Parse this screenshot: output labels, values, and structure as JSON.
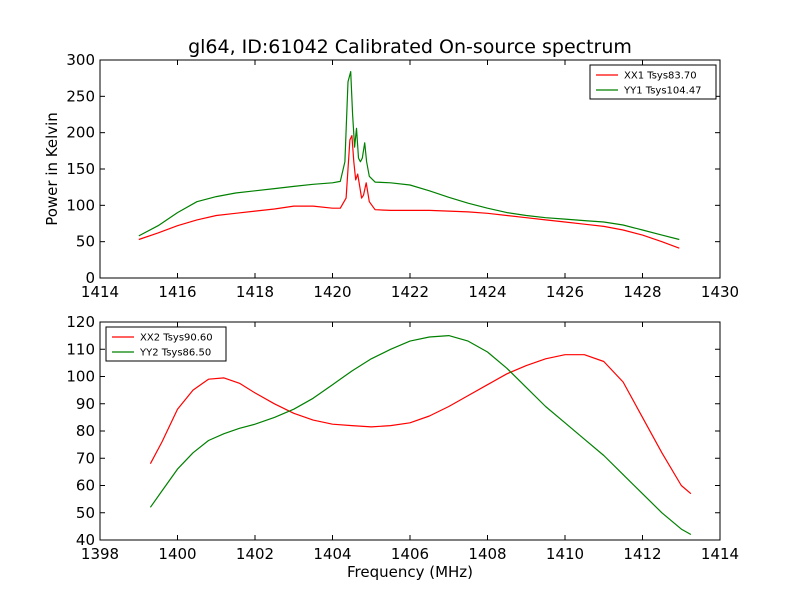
{
  "chart_data": [
    {
      "type": "line",
      "title": "gl64, ID:61042 Calibrated On-source spectrum",
      "xlabel": "",
      "ylabel": "Power in Kelvin",
      "xlim": [
        1414,
        1430
      ],
      "ylim": [
        0,
        300
      ],
      "xticks": [
        "1414",
        "1416",
        "1418",
        "1420",
        "1422",
        "1424",
        "1426",
        "1428",
        "1430"
      ],
      "yticks": [
        "0",
        "50",
        "100",
        "150",
        "200",
        "250",
        "300"
      ],
      "legend_position": "top-right",
      "series": [
        {
          "name": "XX1 Tsys83.70",
          "color": "#ff0000",
          "x": [
            1415.0,
            1415.5,
            1416.0,
            1416.5,
            1417.0,
            1417.5,
            1418.0,
            1418.5,
            1419.0,
            1419.5,
            1420.0,
            1420.2,
            1420.35,
            1420.45,
            1420.5,
            1420.55,
            1420.6,
            1420.65,
            1420.7,
            1420.75,
            1420.8,
            1420.87,
            1420.95,
            1421.1,
            1421.5,
            1422.0,
            1422.5,
            1423.0,
            1423.5,
            1424.0,
            1424.5,
            1425.0,
            1425.5,
            1426.0,
            1426.5,
            1427.0,
            1427.5,
            1428.0,
            1428.5,
            1428.95
          ],
          "values": [
            53,
            62,
            72,
            80,
            86,
            89,
            92,
            95,
            99,
            99,
            96,
            96,
            110,
            190,
            196,
            160,
            135,
            143,
            127,
            110,
            114,
            131,
            105,
            94,
            93,
            93,
            93,
            92,
            91,
            89,
            86,
            83,
            80,
            77,
            74,
            71,
            66,
            59,
            50,
            41
          ]
        },
        {
          "name": "YY1 Tsys104.47",
          "color": "#008000",
          "x": [
            1415.0,
            1415.5,
            1416.0,
            1416.5,
            1417.0,
            1417.5,
            1418.0,
            1418.5,
            1419.0,
            1419.5,
            1420.0,
            1420.2,
            1420.32,
            1420.4,
            1420.47,
            1420.52,
            1420.57,
            1420.62,
            1420.67,
            1420.72,
            1420.77,
            1420.83,
            1420.88,
            1420.95,
            1421.1,
            1421.5,
            1422.0,
            1422.5,
            1423.0,
            1423.5,
            1424.0,
            1424.5,
            1425.0,
            1425.5,
            1426.0,
            1426.5,
            1427.0,
            1427.5,
            1428.0,
            1428.5,
            1428.95
          ],
          "values": [
            58,
            72,
            90,
            105,
            112,
            117,
            120,
            123,
            126,
            129,
            131,
            133,
            160,
            270,
            284,
            225,
            180,
            206,
            165,
            160,
            165,
            186,
            160,
            140,
            132,
            131,
            128,
            120,
            111,
            103,
            96,
            90,
            86,
            83,
            81,
            79,
            77,
            73,
            66,
            59,
            53
          ]
        }
      ]
    },
    {
      "type": "line",
      "title": "",
      "xlabel": "Frequency (MHz)",
      "ylabel": "",
      "xlim": [
        1398,
        1414
      ],
      "ylim": [
        40,
        120
      ],
      "xticks": [
        "1398",
        "1400",
        "1402",
        "1404",
        "1406",
        "1408",
        "1410",
        "1412",
        "1414"
      ],
      "yticks": [
        "40",
        "50",
        "60",
        "70",
        "80",
        "90",
        "100",
        "110",
        "120"
      ],
      "legend_position": "top-left",
      "series": [
        {
          "name": "XX2 Tsys90.60",
          "color": "#ff0000",
          "x": [
            1399.3,
            1399.6,
            1400.0,
            1400.4,
            1400.8,
            1401.2,
            1401.6,
            1402.0,
            1402.5,
            1403.0,
            1403.5,
            1404.0,
            1404.5,
            1405.0,
            1405.5,
            1406.0,
            1406.5,
            1407.0,
            1407.5,
            1408.0,
            1408.5,
            1409.0,
            1409.5,
            1410.0,
            1410.5,
            1411.0,
            1411.5,
            1412.0,
            1412.5,
            1413.0,
            1413.25
          ],
          "values": [
            68,
            76,
            88,
            95,
            99,
            99.5,
            97.5,
            94,
            90,
            86.5,
            84,
            82.5,
            82,
            81.5,
            82,
            83,
            85.5,
            89,
            93,
            97,
            101,
            104,
            106.5,
            108,
            108,
            105.5,
            98,
            85,
            72,
            60,
            57
          ]
        },
        {
          "name": "YY2 Tsys86.50",
          "color": "#008000",
          "x": [
            1399.3,
            1399.6,
            1400.0,
            1400.4,
            1400.8,
            1401.2,
            1401.6,
            1402.0,
            1402.5,
            1403.0,
            1403.5,
            1404.0,
            1404.5,
            1405.0,
            1405.5,
            1406.0,
            1406.5,
            1407.0,
            1407.5,
            1408.0,
            1408.5,
            1409.0,
            1409.5,
            1410.0,
            1410.5,
            1411.0,
            1411.5,
            1412.0,
            1412.5,
            1413.0,
            1413.25
          ],
          "values": [
            52,
            58,
            66,
            72,
            76.5,
            79,
            81,
            82.5,
            85,
            88,
            92,
            97,
            102,
            106.5,
            110,
            113,
            114.5,
            115,
            113,
            109,
            103,
            96,
            89,
            83,
            77,
            71,
            64,
            57,
            50,
            44,
            42
          ]
        }
      ]
    }
  ]
}
